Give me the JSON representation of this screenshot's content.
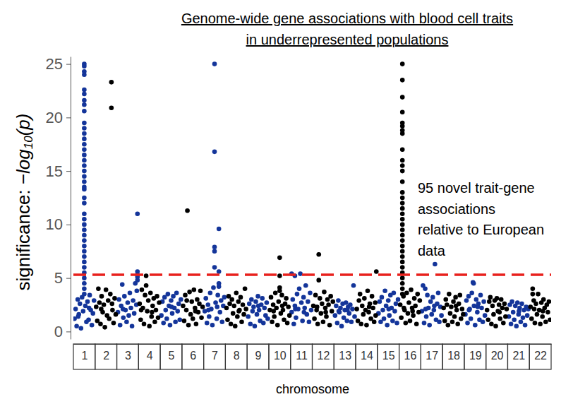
{
  "chart_data": {
    "type": "scatter",
    "title": [
      "Genome-wide gene associations with blood cell traits",
      "in underrepresented populations"
    ],
    "x_label": "chromosome",
    "y_label": [
      "significance: ",
      "−log",
      "10",
      "(p)"
    ],
    "annotation": [
      "95 novel trait-gene",
      "associations",
      "relative to European",
      "data"
    ],
    "xlim": [
      0.5,
      22.5
    ],
    "ylim": [
      -0.7,
      25.7
    ],
    "xticks": [
      1,
      2,
      3,
      4,
      5,
      6,
      7,
      8,
      9,
      10,
      11,
      12,
      13,
      14,
      15,
      16,
      17,
      18,
      19,
      20,
      21,
      22
    ],
    "yticks": [
      0,
      5,
      10,
      15,
      20,
      25
    ],
    "grid": false,
    "marker": "circle",
    "hline": {
      "value": 5.3,
      "color": "#e8211d",
      "line_style": "dashed"
    },
    "series": [
      {
        "color": "#14359a",
        "x": [
          0.55,
          0.6,
          0.65,
          0.7,
          0.75,
          0.8,
          0.85,
          0.9,
          0.95,
          1.05,
          1.1,
          1.15,
          1.2,
          1.25,
          1.3,
          1.35,
          1.4,
          1.45,
          0.72,
          1.22,
          1,
          1,
          1,
          1,
          1,
          1,
          1,
          1,
          1,
          1,
          1,
          1,
          1,
          1,
          1,
          1,
          1,
          1,
          1,
          1,
          1,
          1,
          1,
          1,
          1,
          1,
          1,
          1,
          1,
          1,
          1,
          1,
          1,
          1,
          1,
          1,
          1,
          1,
          1,
          1,
          1,
          2.55,
          2.6,
          2.65,
          2.7,
          2.75,
          2.8,
          2.85,
          2.9,
          2.95,
          3,
          3.05,
          3.1,
          3.15,
          3.2,
          3.25,
          3.3,
          3.35,
          3.4,
          3.42,
          2.78,
          3.45,
          3.45,
          3.45,
          3.45,
          3.45,
          4.55,
          4.6,
          4.65,
          4.7,
          4.75,
          4.8,
          4.85,
          4.9,
          4.95,
          5,
          5.05,
          5.1,
          5.15,
          5.2,
          5.25,
          5.3,
          5.35,
          5.4,
          5.45,
          5.02,
          6.55,
          6.6,
          6.65,
          6.7,
          6.75,
          6.8,
          6.85,
          6.9,
          6.95,
          7.05,
          7.1,
          7.15,
          7.25,
          7.3,
          7.35,
          7.4,
          7.45,
          6.72,
          7.12,
          7,
          7,
          7,
          7,
          7,
          7.2,
          7.2,
          7.2,
          7.2,
          8.55,
          8.6,
          8.65,
          8.7,
          8.75,
          8.8,
          8.85,
          8.9,
          8.95,
          9,
          9.05,
          9.1,
          9.15,
          9.2,
          9.25,
          9.3,
          9.35,
          9.4,
          9.45,
          9.02,
          10.55,
          10.6,
          10.65,
          10.7,
          10.75,
          10.8,
          10.85,
          10.9,
          11,
          11.05,
          11.1,
          11.15,
          11.2,
          11.25,
          11.3,
          11.35,
          11.4,
          11.45,
          10.72,
          11.12,
          10.55,
          10.95,
          10.7,
          12.55,
          12.6,
          12.65,
          12.7,
          12.75,
          12.8,
          12.85,
          12.9,
          12.95,
          13,
          13.05,
          13.1,
          13.15,
          13.2,
          13.25,
          13.3,
          13.35,
          13.45,
          12.72,
          13.12,
          13.4,
          14.55,
          14.6,
          14.65,
          14.7,
          14.75,
          14.8,
          14.85,
          14.9,
          14.95,
          15,
          15.05,
          15.1,
          15.15,
          15.2,
          15.25,
          15.3,
          15.35,
          15.4,
          15.45,
          15.02,
          16.55,
          16.6,
          16.65,
          16.7,
          16.75,
          16.8,
          16.85,
          16.9,
          16.95,
          17,
          17.05,
          17.1,
          17.2,
          17.25,
          17.3,
          17.35,
          17.4,
          17.45,
          16.72,
          17.12,
          17.15,
          18.55,
          18.6,
          18.65,
          18.7,
          18.75,
          18.8,
          18.85,
          18.95,
          19,
          19.05,
          19.1,
          19.15,
          19.2,
          19.25,
          19.3,
          19.35,
          19.4,
          19.45,
          18.72,
          19.12,
          18.9,
          18.93,
          20.55,
          20.6,
          20.65,
          20.7,
          20.75,
          20.8,
          20.85,
          20.9,
          20.95,
          21,
          21.05,
          21.1,
          21.15,
          21.2,
          21.25,
          21.3,
          21.35,
          21.4,
          21.45,
          21.02
        ],
        "values": [
          1.2,
          2.1,
          0.5,
          3.0,
          1.6,
          2.6,
          0.3,
          3.2,
          1.9,
          2.4,
          0.9,
          2.8,
          1.1,
          3.4,
          2.0,
          0.6,
          1.7,
          2.9,
          1.4,
          2.2,
          25,
          24.8,
          24.3,
          24.0,
          22.6,
          22.2,
          21.6,
          21.2,
          20.6,
          19.5,
          19,
          18.5,
          18,
          17.5,
          17,
          16.5,
          16,
          15.5,
          15,
          14.5,
          14,
          13.5,
          13.3,
          12.5,
          12,
          11,
          10.5,
          10,
          9.5,
          9,
          8.5,
          8,
          7.5,
          7,
          6.5,
          6,
          5.5,
          5,
          4.5,
          4,
          3.5,
          1.8,
          3.0,
          0.6,
          2.4,
          4.4,
          1.3,
          3.3,
          2.0,
          0.9,
          2.7,
          1.5,
          3.6,
          2.2,
          0.5,
          2.9,
          1.7,
          4.5,
          2.5,
          3.8,
          2.1,
          11.0,
          5.6,
          5.3,
          5.1,
          4.8,
          1.5,
          2.8,
          0.8,
          3.2,
          2.0,
          1.2,
          3.5,
          2.4,
          0.6,
          2.9,
          1.7,
          3.3,
          2.2,
          0.9,
          3.6,
          1.9,
          2.6,
          1.1,
          3.0,
          2.3,
          1.9,
          3.1,
          0.8,
          2.5,
          1.4,
          3.6,
          2.1,
          0.6,
          4.1,
          2.7,
          1.2,
          3.4,
          1.8,
          2.9,
          0.9,
          2.4,
          3.2,
          2.0,
          2.3,
          25.0,
          16.8,
          7.9,
          7.5,
          6.0,
          9.6,
          5.6,
          4.5,
          4.2,
          1.4,
          2.6,
          0.7,
          3.0,
          1.9,
          2.3,
          0.5,
          2.8,
          1.6,
          3.3,
          2.0,
          1.0,
          2.5,
          3.1,
          0.8,
          2.2,
          1.5,
          2.7,
          1.2,
          2.4,
          1.8,
          3.0,
          0.7,
          2.4,
          1.3,
          3.5,
          2.1,
          4.0,
          2.7,
          1.0,
          3.2,
          2.2,
          4.3,
          1.6,
          2.8,
          0.9,
          3.6,
          2.0,
          2.1,
          1.8,
          5.4,
          5.4,
          5.2,
          1.5,
          2.4,
          0.8,
          2.9,
          1.8,
          2.2,
          0.5,
          2.6,
          1.3,
          2.0,
          2.7,
          1.0,
          2.3,
          1.7,
          2.5,
          0.9,
          2.1,
          1.4,
          1.9,
          2.0,
          4.3,
          1.7,
          2.8,
          0.9,
          3.2,
          2.0,
          1.2,
          3.8,
          2.4,
          0.6,
          2.9,
          1.5,
          3.4,
          2.2,
          1.0,
          3.6,
          1.9,
          2.6,
          0.8,
          3.0,
          2.1,
          1.9,
          4.3,
          0.8,
          4.0,
          1.4,
          3.4,
          2.2,
          0.6,
          2.8,
          1.6,
          3.2,
          2.0,
          1.1,
          2.6,
          3.6,
          0.9,
          2.3,
          1.5,
          2.1,
          2.4,
          6.3,
          1.6,
          2.9,
          0.8,
          3.3,
          2.1,
          1.2,
          3.6,
          2.4,
          0.6,
          3.0,
          1.8,
          2.6,
          1.1,
          3.4,
          2.2,
          0.9,
          2.8,
          1.5,
          2.0,
          2.3,
          4.6,
          4.5,
          1.4,
          2.5,
          0.7,
          2.8,
          1.8,
          1.1,
          2.4,
          0.5,
          2.7,
          1.6,
          2.2,
          0.9,
          2.6,
          1.3,
          2.0,
          0.6,
          2.3,
          1.5,
          2.1,
          1.9
        ]
      },
      {
        "color": "#000000",
        "x": [
          1.55,
          1.6,
          1.65,
          1.7,
          1.75,
          1.8,
          1.85,
          1.9,
          1.95,
          2,
          2.05,
          2.1,
          2.15,
          2.2,
          2.3,
          2.35,
          2.4,
          2.45,
          1.78,
          2.28,
          2.25,
          2.25,
          3.55,
          3.6,
          3.65,
          3.7,
          3.75,
          3.8,
          3.9,
          3.95,
          4,
          4.05,
          4.1,
          4.15,
          4.2,
          4.25,
          4.3,
          4.35,
          4.4,
          4.45,
          3.62,
          4.12,
          3.85,
          3.85,
          5.55,
          5.6,
          5.65,
          5.7,
          5.8,
          5.85,
          5.9,
          5.95,
          6,
          6.05,
          6.1,
          6.15,
          6.2,
          6.25,
          6.3,
          6.35,
          6.4,
          6.45,
          5.72,
          6.12,
          5.75,
          7.55,
          7.6,
          7.65,
          7.7,
          7.75,
          7.8,
          7.85,
          7.9,
          7.95,
          8,
          8.05,
          8.1,
          8.15,
          8.2,
          8.25,
          8.3,
          8.35,
          8.4,
          8.45,
          8.12,
          9.55,
          9.6,
          9.65,
          9.7,
          9.75,
          9.8,
          9.85,
          9.9,
          9.95,
          10.05,
          10.1,
          10.15,
          10.2,
          10.25,
          10.3,
          10.35,
          10.4,
          10.45,
          9.72,
          10.12,
          10,
          10,
          10,
          10,
          11.55,
          11.6,
          11.65,
          11.7,
          11.75,
          11.85,
          11.9,
          11.95,
          12,
          12.05,
          12.1,
          12.15,
          12.2,
          12.25,
          12.3,
          12.35,
          12.4,
          12.45,
          11.72,
          12.12,
          11.8,
          11.8,
          13.55,
          13.6,
          13.65,
          13.7,
          13.75,
          13.8,
          13.85,
          13.9,
          13.95,
          14,
          14.05,
          14.1,
          14.15,
          14.2,
          14.25,
          14.3,
          14.35,
          14.4,
          14.42,
          14.12,
          14.45,
          15.55,
          15.6,
          15.7,
          15.75,
          15.8,
          15.85,
          15.9,
          15.95,
          16,
          16.05,
          16.1,
          16.15,
          16.2,
          16.25,
          16.3,
          16.35,
          16.4,
          16.45,
          15.72,
          16.12,
          15.65,
          15.65,
          15.65,
          15.65,
          15.65,
          15.65,
          15.65,
          15.65,
          15.65,
          15.65,
          15.65,
          15.65,
          15.65,
          15.65,
          15.65,
          15.65,
          15.65,
          15.65,
          15.65,
          15.65,
          15.65,
          15.65,
          15.65,
          15.65,
          15.65,
          15.65,
          15.65,
          15.65,
          15.65,
          15.65,
          15.65,
          15.65,
          15.65,
          17.55,
          17.6,
          17.65,
          17.7,
          17.75,
          17.8,
          17.85,
          17.9,
          17.95,
          18,
          18.05,
          18.1,
          18.15,
          18.2,
          18.25,
          18.3,
          18.35,
          18.4,
          18.45,
          18.12,
          19.55,
          19.6,
          19.65,
          19.7,
          19.75,
          19.8,
          19.85,
          19.9,
          19.95,
          20,
          20.05,
          20.1,
          20.15,
          20.2,
          20.25,
          20.3,
          20.35,
          20.4,
          20.45,
          20.12,
          21.55,
          21.6,
          21.7,
          21.75,
          21.8,
          21.85,
          21.9,
          21.95,
          22,
          22.05,
          22.1,
          22.15,
          22.2,
          22.25,
          22.3,
          22.35,
          22.4,
          22.45,
          21.72,
          22.12,
          21.65,
          21.65
        ],
        "values": [
          2.3,
          1.0,
          4.0,
          2.7,
          0.7,
          3.3,
          1.8,
          2.5,
          0.4,
          3.9,
          1.5,
          2.9,
          1.2,
          3.5,
          2.0,
          0.8,
          3.1,
          1.6,
          2.1,
          2.6,
          23.3,
          20.9,
          2.6,
          1.1,
          3.9,
          2.2,
          0.7,
          3.4,
          1.9,
          2.9,
          0.5,
          3.6,
          1.4,
          2.4,
          3.1,
          0.9,
          2.0,
          3.3,
          1.3,
          2.7,
          2.0,
          1.8,
          5.2,
          4.3,
          2.4,
          1.0,
          3.4,
          2.0,
          0.6,
          3.7,
          1.6,
          2.8,
          1.2,
          3.9,
          2.2,
          0.7,
          3.0,
          1.8,
          2.6,
          3.8,
          1.3,
          2.3,
          2.9,
          1.9,
          11.3,
          2.2,
          1.1,
          3.3,
          2.6,
          0.7,
          3.0,
          1.7,
          2.4,
          0.5,
          3.6,
          1.4,
          2.8,
          2.0,
          3.2,
          0.9,
          2.5,
          1.6,
          4.0,
          2.1,
          1.9,
          2.0,
          3.2,
          0.9,
          2.5,
          1.4,
          3.6,
          2.2,
          0.6,
          2.8,
          1.7,
          3.4,
          2.0,
          1.1,
          2.6,
          3.1,
          0.8,
          2.3,
          1.5,
          1.9,
          2.4,
          6.9,
          5.2,
          4.1,
          3.8,
          2.4,
          1.2,
          3.4,
          2.0,
          0.7,
          3.1,
          1.7,
          2.6,
          0.9,
          3.7,
          2.2,
          1.4,
          3.0,
          2.5,
          0.6,
          3.3,
          1.9,
          2.8,
          2.3,
          1.8,
          7.2,
          4.8,
          2.1,
          1.0,
          2.9,
          3.5,
          0.7,
          2.4,
          1.6,
          3.1,
          2.0,
          0.6,
          3.8,
          1.8,
          2.6,
          1.2,
          3.3,
          2.2,
          0.9,
          2.7,
          1.5,
          2.3,
          5.6,
          2.5,
          1.3,
          3.3,
          2.0,
          0.8,
          3.6,
          1.7,
          2.7,
          1.0,
          3.9,
          2.2,
          1.5,
          3.1,
          2.4,
          0.7,
          3.5,
          1.8,
          2.9,
          2.2,
          1.9,
          25.0,
          23.5,
          21.9,
          20.5,
          19.5,
          19.2,
          18.8,
          18.5,
          17.0,
          16.0,
          15.5,
          15.0,
          14.0,
          13.0,
          12.5,
          12.0,
          11.5,
          11.0,
          10.5,
          10.0,
          9.5,
          9.0,
          8.5,
          8.0,
          7.5,
          7.0,
          6.5,
          6.0,
          5.5,
          5.0,
          4.5,
          4.0,
          3.5,
          2.2,
          1.0,
          3.0,
          2.5,
          0.6,
          3.5,
          1.7,
          2.3,
          0.9,
          2.8,
          1.4,
          3.2,
          2.0,
          0.7,
          2.6,
          3.4,
          1.2,
          2.1,
          1.6,
          2.4,
          2.0,
          1.1,
          2.8,
          3.2,
          0.7,
          2.4,
          1.6,
          2.9,
          0.5,
          3.1,
          1.9,
          2.5,
          1.2,
          3.0,
          2.2,
          0.8,
          2.6,
          1.4,
          2.1,
          1.8,
          2.3,
          1.2,
          2.9,
          0.8,
          2.6,
          1.6,
          3.5,
          2.0,
          0.7,
          2.7,
          1.4,
          3.0,
          2.2,
          0.9,
          2.5,
          1.8,
          2.8,
          1.1,
          2.1,
          1.9,
          4.0,
          3.5
        ]
      }
    ]
  }
}
